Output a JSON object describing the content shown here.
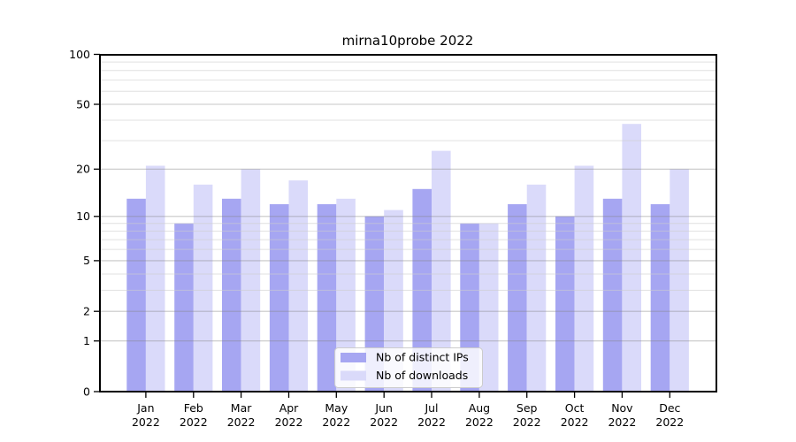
{
  "chart_data": {
    "type": "bar",
    "title": "mirna10probe 2022",
    "categories": [
      "Jan 2022",
      "Feb 2022",
      "Mar 2022",
      "Apr 2022",
      "May 2022",
      "Jun 2022",
      "Jul 2022",
      "Aug 2022",
      "Sep 2022",
      "Oct 2022",
      "Nov 2022",
      "Dec 2022"
    ],
    "series": [
      {
        "name": "Nb of distinct IPs",
        "color": "#a6a6f2",
        "values": [
          13,
          9,
          13,
          12,
          12,
          10,
          15,
          9,
          12,
          10,
          13,
          12
        ]
      },
      {
        "name": "Nb of downloads",
        "color": "#dadafa",
        "values": [
          21,
          16,
          20,
          17,
          13,
          11,
          26,
          9,
          16,
          21,
          38,
          20
        ]
      }
    ],
    "xlabel": "",
    "ylabel": "",
    "yscale": "log1p",
    "ylim": [
      0,
      100
    ],
    "yticks": [
      0,
      1,
      2,
      5,
      10,
      20,
      50,
      100
    ],
    "yticks_minor": [
      3,
      4,
      6,
      7,
      8,
      9,
      30,
      40,
      60,
      70,
      80,
      90
    ],
    "grid": "horizontal",
    "legend": {
      "position": "inside-bottom-center",
      "entries": [
        "Nb of distinct IPs",
        "Nb of downloads"
      ],
      "background": "rgba(255,255,255,0.82)",
      "border_color": "#cccccc"
    },
    "colors": {
      "background": "#ffffff",
      "axis": "#000000",
      "grid_major": "rgba(130,130,130,0.45)",
      "grid_minor": "rgba(205,205,205,0.6)",
      "text": "#000000"
    }
  }
}
